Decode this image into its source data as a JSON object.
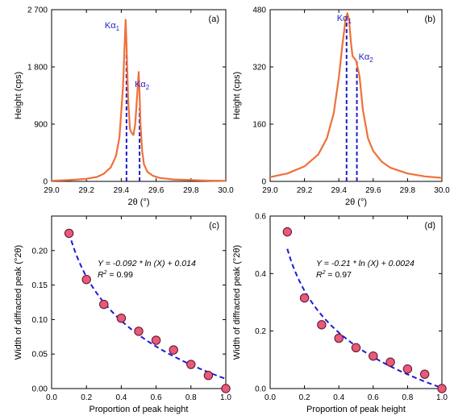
{
  "colors": {
    "spectrum": "#f0703a",
    "marker": "#1f1fc8",
    "point_fill": "#e85a78",
    "point_edge": "#5a1030",
    "fit": "#1a1ad8"
  },
  "chart_data": [
    {
      "type": "line",
      "panel": "(a)",
      "xlabel": "2θ (°)",
      "ylabel": "Height (cps)",
      "xlim": [
        29.0,
        30.0
      ],
      "ylim": [
        0,
        2700
      ],
      "xticks": [
        "29.0",
        "29.2",
        "29.4",
        "29.6",
        "29.8",
        "30.0"
      ],
      "yticks": [
        "0",
        "900",
        "1 800",
        "2 700"
      ],
      "grid": false,
      "series": [
        {
          "x": [
            29.0,
            29.1,
            29.2,
            29.26,
            29.3,
            29.34,
            29.37,
            29.39,
            29.41,
            29.42,
            29.425,
            29.43,
            29.44,
            29.45,
            29.46,
            29.47,
            29.48,
            29.49,
            29.5,
            29.505,
            29.51,
            29.52,
            29.53,
            29.55,
            29.58,
            29.62,
            29.7,
            29.8,
            29.9,
            30.0
          ],
          "values": [
            10,
            20,
            40,
            70,
            120,
            220,
            400,
            700,
            1500,
            2200,
            2540,
            2150,
            1250,
            820,
            760,
            730,
            900,
            1300,
            1720,
            1370,
            900,
            480,
            270,
            150,
            90,
            55,
            30,
            20,
            12,
            8
          ]
        }
      ],
      "markers": [
        {
          "label": "Kα",
          "sub": "1",
          "x": 29.43,
          "height": 2000
        },
        {
          "label": "Kα",
          "sub": "2",
          "x": 29.505,
          "height": 1150
        }
      ]
    },
    {
      "type": "line",
      "panel": "(b)",
      "xlabel": "2θ (°)",
      "ylabel": "Height (cps)",
      "xlim": [
        29.0,
        30.0
      ],
      "ylim": [
        0,
        480
      ],
      "xticks": [
        "29.0",
        "29.2",
        "29.4",
        "29.6",
        "29.8",
        "30.0"
      ],
      "yticks": [
        "0",
        "160",
        "320",
        "480"
      ],
      "grid": false,
      "series": [
        {
          "x": [
            29.0,
            29.1,
            29.2,
            29.28,
            29.33,
            29.37,
            29.4,
            29.42,
            29.44,
            29.45,
            29.46,
            29.47,
            29.48,
            29.5,
            29.52,
            29.54,
            29.57,
            29.6,
            29.65,
            29.7,
            29.8,
            29.9,
            30.0
          ],
          "values": [
            12,
            22,
            42,
            75,
            120,
            190,
            290,
            380,
            455,
            470,
            450,
            390,
            350,
            338,
            295,
            200,
            120,
            85,
            55,
            38,
            22,
            14,
            10
          ]
        }
      ],
      "markers": [
        {
          "label": "Kα",
          "sub": "1",
          "x": 29.445,
          "height": 465
        },
        {
          "label": "Kα",
          "sub": "2",
          "x": 29.505,
          "height": 335
        }
      ]
    },
    {
      "type": "scatter",
      "panel": "(c)",
      "xlabel": "Proportion of peak height",
      "ylabel": "Width of diffracted peak (°2θ)",
      "xlim": [
        0.0,
        1.0
      ],
      "ylim": [
        0.0,
        0.25
      ],
      "xticks": [
        "0.0",
        "0.2",
        "0.4",
        "0.6",
        "0.8",
        "1.0"
      ],
      "yticks": [
        "0.00",
        "0.05",
        "0.10",
        "0.15",
        "0.20"
      ],
      "grid": false,
      "series": [
        {
          "x": [
            0.1,
            0.2,
            0.3,
            0.4,
            0.5,
            0.6,
            0.7,
            0.8,
            0.9,
            1.0
          ],
          "values": [
            0.225,
            0.158,
            0.122,
            0.102,
            0.083,
            0.07,
            0.056,
            0.035,
            0.019,
            0.0
          ]
        }
      ],
      "fit": {
        "a": -0.092,
        "b": 0.014,
        "x_from": 0.1,
        "x_to": 1.0
      },
      "equation": "Y = -0.092 * ln (X) + 0.014",
      "r2": "R² = 0.99"
    },
    {
      "type": "scatter",
      "panel": "(d)",
      "xlabel": "Proportion of peak height",
      "ylabel": "Width of diffracted peak (°2θ)",
      "xlim": [
        0.0,
        1.0
      ],
      "ylim": [
        0.0,
        0.6
      ],
      "xticks": [
        "0.0",
        "0.2",
        "0.4",
        "0.6",
        "0.8",
        "1.0"
      ],
      "yticks": [
        "0.0",
        "0.2",
        "0.4",
        "0.6"
      ],
      "grid": false,
      "series": [
        {
          "x": [
            0.1,
            0.2,
            0.3,
            0.4,
            0.5,
            0.6,
            0.7,
            0.8,
            0.9,
            1.0
          ],
          "values": [
            0.545,
            0.315,
            0.222,
            0.175,
            0.142,
            0.113,
            0.092,
            0.068,
            0.05,
            0.0
          ]
        }
      ],
      "fit": {
        "a": -0.21,
        "b": 0.0024,
        "x_from": 0.1,
        "x_to": 1.0
      },
      "equation": "Y = -0.21 * ln (X) + 0.0024",
      "r2": "R² = 0.97"
    }
  ]
}
